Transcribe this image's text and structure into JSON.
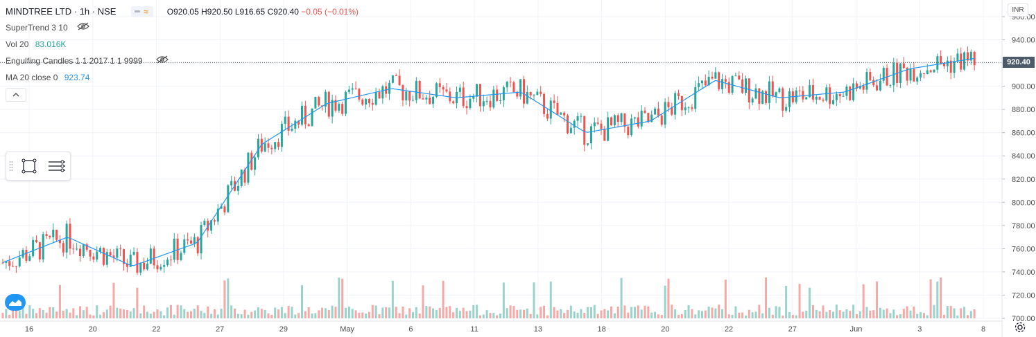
{
  "symbol": {
    "name": "MINDTREE LTD",
    "interval": "1h",
    "exchange": "NSE",
    "ohlc": {
      "o_label": "O",
      "o": "920.05",
      "h_label": "H",
      "h": "920.50",
      "l_label": "L",
      "l": "916.65",
      "c_label": "C",
      "c": "920.40",
      "change": "−0.05 (−0.01%)"
    }
  },
  "indicators": {
    "supertrend": "SuperTrend 3 10",
    "vol_label": "Vol 20",
    "vol_value": "83.016K",
    "engulfing": "Engulfing Candles 1 1 2017 1 1 9999",
    "ma_label": "MA 20 close 0",
    "ma_value": "923.74"
  },
  "price_axis": {
    "currency": "INR",
    "last_price": "920.40",
    "ticks": [
      "960.00",
      "940.00",
      "920.00",
      "900.00",
      "880.00",
      "860.00",
      "840.00",
      "820.00",
      "800.00",
      "780.00",
      "760.00",
      "740.00",
      "720.00",
      "700.00"
    ]
  },
  "time_axis": {
    "labels": [
      "16",
      "20",
      "22",
      "27",
      "29",
      "May",
      "6",
      "11",
      "13",
      "18",
      "20",
      "22",
      "27",
      "Jun",
      "3",
      "8"
    ]
  },
  "colors": {
    "up": "#26a69a",
    "down": "#ef5350",
    "up_vol": "#9ad3cc",
    "down_vol": "#f4a9a7",
    "ma": "#2196f3",
    "grid": "#f0f3fa"
  },
  "icons": {
    "eye_off": "eye-off-icon",
    "collapse": "chevron-up-icon",
    "rectangle_tool": "rectangle-icon",
    "menu": "menu-lines-icon",
    "settings": "gear-icon",
    "logo": "tradingview-logo-icon"
  },
  "chart_data": {
    "type": "line",
    "title": "MINDTREE LTD · 1h · NSE",
    "series": [
      {
        "name": "MA 20 close 0",
        "x": [
          "16",
          "20",
          "22",
          "27",
          "29",
          "May",
          "6",
          "11",
          "13",
          "18",
          "20",
          "22",
          "27",
          "Jun",
          "3",
          "8"
        ],
        "values": [
          748,
          770,
          745,
          765,
          850,
          885,
          898,
          890,
          895,
          860,
          870,
          905,
          890,
          895,
          915,
          924
        ]
      }
    ],
    "ylim": [
      700,
      960
    ],
    "xlabel": "",
    "ylabel": ""
  }
}
